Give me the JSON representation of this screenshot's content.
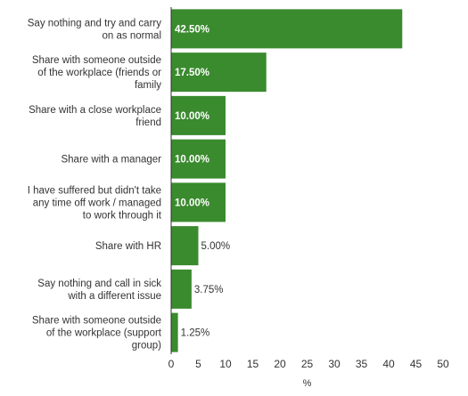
{
  "chart_data": {
    "type": "bar",
    "orientation": "horizontal",
    "categories": [
      "Say nothing and try and carry on as normal",
      "Share with someone outside of the workplace (friends or family",
      "Share with a close workplace friend",
      "Share with a manager",
      "I have suffered but didn't take any time off work / managed to work through it",
      "Share with HR",
      "Say nothing and call in sick with a different issue",
      "Share with someone outside of the workplace (support group)"
    ],
    "category_label_lines": [
      [
        "Say nothing and try and carry",
        "on as normal"
      ],
      [
        "Share with someone outside",
        "of the workplace (friends or",
        "family"
      ],
      [
        "Share with a close workplace",
        "friend"
      ],
      [
        "Share with a manager"
      ],
      [
        "I have suffered but didn't take",
        "any time off work / managed",
        "to work through it"
      ],
      [
        "Share with HR"
      ],
      [
        "Say nothing and call in sick",
        "with a different issue"
      ],
      [
        "Share with someone outside",
        "of the workplace (support",
        "group)"
      ]
    ],
    "values": [
      42.5,
      17.5,
      10.0,
      10.0,
      10.0,
      5.0,
      3.75,
      1.25
    ],
    "value_labels": [
      "42.50%",
      "17.50%",
      "10.00%",
      "10.00%",
      "10.00%",
      "5.00%",
      "3.75%",
      "1.25%"
    ],
    "xlim": [
      0,
      50
    ],
    "xticks": [
      0,
      5,
      10,
      15,
      20,
      25,
      30,
      35,
      40,
      45,
      50
    ],
    "xlabel": "%",
    "ylabel": "",
    "title": "",
    "grid": false,
    "bar_color": "#3a8a2e"
  }
}
